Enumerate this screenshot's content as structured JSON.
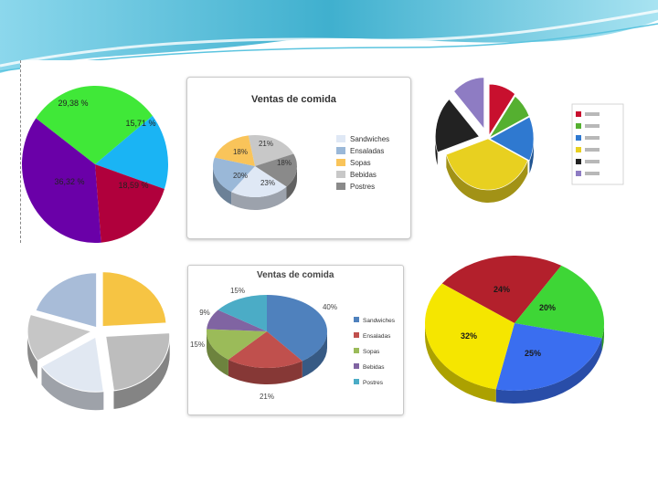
{
  "slide": {
    "accent": "#2aa7c9"
  },
  "chart_data": [
    {
      "id": "chart1",
      "type": "pie",
      "labels": [
        "29,38 %",
        "15,71 %",
        "18,59 %",
        "36,32 %"
      ],
      "values": [
        29.38,
        15.71,
        18.59,
        36.32
      ],
      "colors": [
        "#40e838",
        "#1ab4f4",
        "#b0003c",
        "#6a00a8"
      ]
    },
    {
      "id": "chart2",
      "type": "pie",
      "title": "Ventas de comida",
      "categories": [
        "Sandwiches",
        "Ensaladas",
        "Sopas",
        "Bebidas",
        "Postres"
      ],
      "values": [
        23,
        20,
        18,
        21,
        18
      ],
      "labels": [
        "23%",
        "20%",
        "18%",
        "21%",
        "18%"
      ],
      "colors": [
        "#dfe8f5",
        "#9ab8d8",
        "#f9c45a",
        "#c8c8c8",
        "#8a8a8a"
      ]
    },
    {
      "id": "chart3",
      "type": "pie",
      "values": [
        10,
        8,
        14,
        38,
        18,
        12
      ],
      "colors": [
        "#c8102e",
        "#55b030",
        "#2f79d0",
        "#e8d020",
        "#222222",
        "#8e7cc3"
      ],
      "legend": {
        "position": "right",
        "colors": [
          "#c8102e",
          "#55b030",
          "#2f79d0",
          "#e8d020",
          "#222222",
          "#8e7cc3"
        ]
      }
    },
    {
      "id": "chart4",
      "type": "pie",
      "values": [
        24,
        24,
        18,
        14,
        20
      ],
      "colors": [
        "#f6c443",
        "#bdbdbd",
        "#e1e8f2",
        "#c6c6c6",
        "#a8bcd8"
      ]
    },
    {
      "id": "chart5",
      "type": "pie",
      "title": "Ventas de comida",
      "categories": [
        "Sandwiches",
        "Ensaladas",
        "Sopas",
        "Bebidas",
        "Postres"
      ],
      "values": [
        40,
        21,
        15,
        9,
        15
      ],
      "labels": [
        "40%",
        "21%",
        "15%",
        "9%",
        "15%"
      ],
      "colors": [
        "#4f81bd",
        "#c0504d",
        "#9bbb59",
        "#8064a2",
        "#4bacc6"
      ]
    },
    {
      "id": "chart6",
      "type": "pie",
      "labels": [
        "24%",
        "20%",
        "25%",
        "32%"
      ],
      "values": [
        24,
        20,
        25,
        32
      ],
      "colors": [
        "#b3202c",
        "#3ed636",
        "#3a6ef0",
        "#f5e600"
      ]
    }
  ]
}
